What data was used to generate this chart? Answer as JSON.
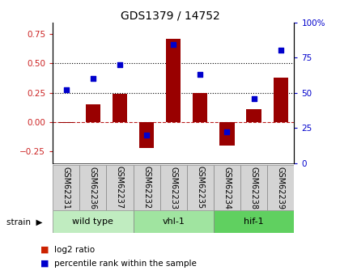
{
  "title": "GDS1379 / 14752",
  "samples": [
    "GSM62231",
    "GSM62236",
    "GSM62237",
    "GSM62232",
    "GSM62233",
    "GSM62235",
    "GSM62234",
    "GSM62238",
    "GSM62239"
  ],
  "log2_ratio": [
    -0.01,
    0.15,
    0.24,
    -0.22,
    0.71,
    0.25,
    -0.2,
    0.11,
    0.38
  ],
  "percentile_rank": [
    52,
    60,
    70,
    20,
    84,
    63,
    22,
    46,
    80
  ],
  "groups": [
    {
      "label": "wild type",
      "start": 0,
      "end": 3,
      "color": "#c0ecc0"
    },
    {
      "label": "vhl-1",
      "start": 3,
      "end": 6,
      "color": "#a0e4a0"
    },
    {
      "label": "hif-1",
      "start": 6,
      "end": 9,
      "color": "#60d060"
    }
  ],
  "bar_color": "#990000",
  "dot_color": "#0000cc",
  "ylim_left": [
    -0.35,
    0.85
  ],
  "ylim_right": [
    0,
    100
  ],
  "yticks_left": [
    -0.25,
    0.0,
    0.25,
    0.5,
    0.75
  ],
  "yticks_right": [
    0,
    25,
    50,
    75,
    100
  ],
  "ytick_labels_right": [
    "0",
    "25",
    "50",
    "75",
    "100%"
  ],
  "hline_0_color": "#bb2222",
  "hline_dot_values": [
    0.25,
    0.5
  ],
  "background_color": "#ffffff",
  "bar_width": 0.55,
  "label_color_left": "#cc2222",
  "label_color_right": "#0000cc",
  "legend_color_ratio": "#cc2200",
  "legend_color_pct": "#0000cc",
  "sample_box_color": "#d4d4d4",
  "title_fontsize": 10,
  "tick_fontsize": 7.5,
  "label_fontsize": 7,
  "group_fontsize": 8,
  "legend_fontsize": 7.5
}
